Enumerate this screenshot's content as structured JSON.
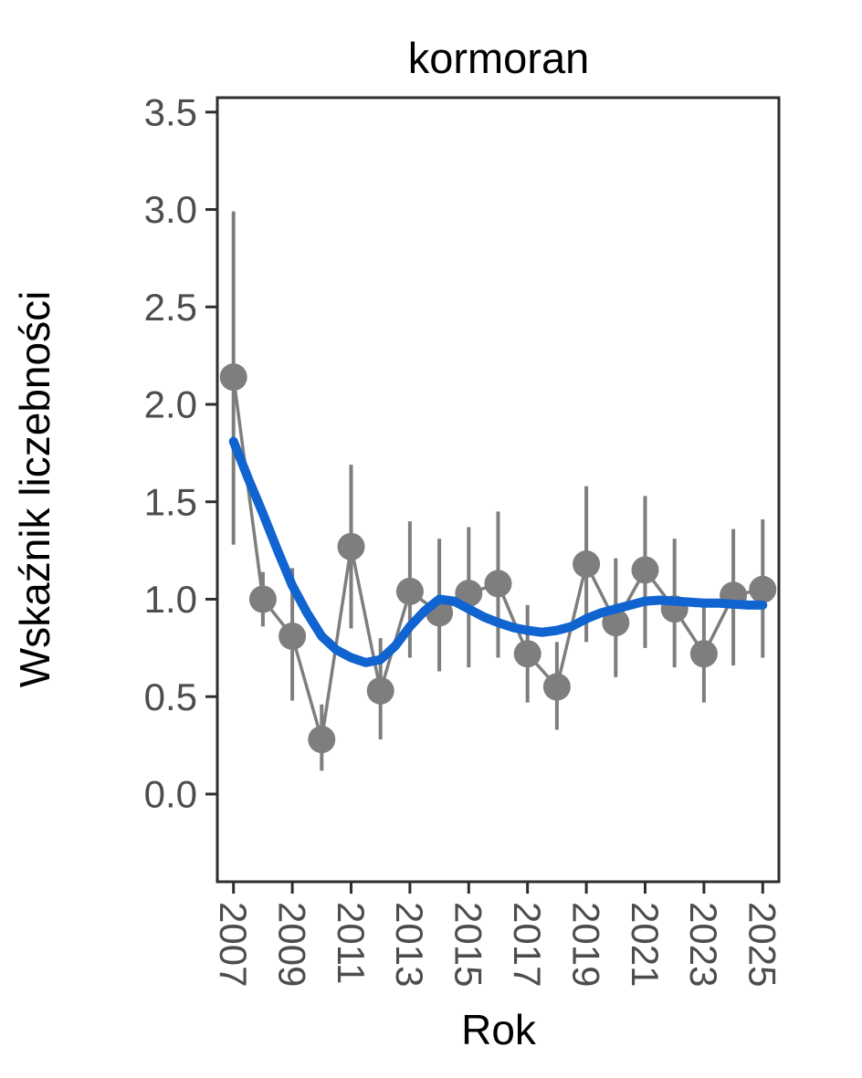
{
  "page": {
    "background": "#ffffff"
  },
  "chart_data": {
    "type": "scatter",
    "title": "kormoran",
    "xlabel": "Rok",
    "ylabel": "Wskaźnik liczebności",
    "xlim": [
      2006.45,
      2025.55
    ],
    "ylim": [
      -0.45,
      3.574
    ],
    "grid": "off",
    "legend": "none",
    "x_ticks": {
      "values": [
        2007,
        2009,
        2011,
        2013,
        2015,
        2017,
        2019,
        2021,
        2023,
        2025
      ],
      "labels": [
        "2007",
        "2009",
        "2011",
        "2013",
        "2015",
        "2017",
        "2019",
        "2021",
        "2023",
        "2025"
      ]
    },
    "y_ticks": {
      "values": [
        0.0,
        0.5,
        1.0,
        1.5,
        2.0,
        2.5,
        3.0,
        3.5
      ],
      "labels": [
        "0.0",
        "0.5",
        "1.0",
        "1.5",
        "2.0",
        "2.5",
        "3.0",
        "3.5"
      ]
    },
    "series": [
      {
        "name": "abundance-index-points",
        "type": "points_with_errorbars_connected",
        "color": "#7e7e7e",
        "years": [
          2007,
          2008,
          2009,
          2010,
          2011,
          2012,
          2013,
          2014,
          2015,
          2016,
          2017,
          2018,
          2019,
          2020,
          2021,
          2022,
          2023,
          2024,
          2025
        ],
        "values": [
          2.14,
          1.0,
          0.81,
          0.28,
          1.27,
          0.53,
          1.04,
          0.93,
          1.03,
          1.08,
          0.72,
          0.55,
          1.18,
          0.88,
          1.15,
          0.95,
          0.72,
          1.02,
          1.05
        ],
        "ci_low": [
          1.28,
          0.86,
          0.48,
          0.12,
          0.85,
          0.28,
          0.7,
          0.63,
          0.65,
          0.7,
          0.47,
          0.33,
          0.78,
          0.6,
          0.75,
          0.65,
          0.47,
          0.66,
          0.7
        ],
        "ci_high": [
          2.99,
          1.14,
          1.16,
          0.46,
          1.69,
          0.8,
          1.4,
          1.31,
          1.37,
          1.45,
          0.97,
          0.78,
          1.58,
          1.21,
          1.53,
          1.31,
          1.0,
          1.36,
          1.41
        ]
      },
      {
        "name": "trend-smooth-line",
        "type": "line",
        "color": "#1064d0",
        "x": [
          2007,
          2007.5,
          2008,
          2008.5,
          2009,
          2009.5,
          2010,
          2010.5,
          2011,
          2011.5,
          2012,
          2012.5,
          2013,
          2013.5,
          2014,
          2014.5,
          2015,
          2015.5,
          2016,
          2016.5,
          2017,
          2017.5,
          2018,
          2018.5,
          2019,
          2019.5,
          2020,
          2020.5,
          2021,
          2021.5,
          2022,
          2022.5,
          2023,
          2023.5,
          2024,
          2024.5,
          2025
        ],
        "y": [
          1.81,
          1.62,
          1.44,
          1.25,
          1.07,
          0.93,
          0.81,
          0.74,
          0.7,
          0.675,
          0.69,
          0.76,
          0.86,
          0.94,
          1.0,
          0.99,
          0.95,
          0.91,
          0.88,
          0.855,
          0.84,
          0.83,
          0.84,
          0.86,
          0.9,
          0.93,
          0.95,
          0.97,
          0.99,
          0.995,
          0.99,
          0.985,
          0.98,
          0.98,
          0.975,
          0.97,
          0.97
        ]
      }
    ],
    "colors": {
      "points": "#7e7e7e",
      "trend": "#1064d0",
      "tick_text": "#4d4d4d",
      "axis_line": "#2e2e2e",
      "title_text": "#000000"
    }
  }
}
